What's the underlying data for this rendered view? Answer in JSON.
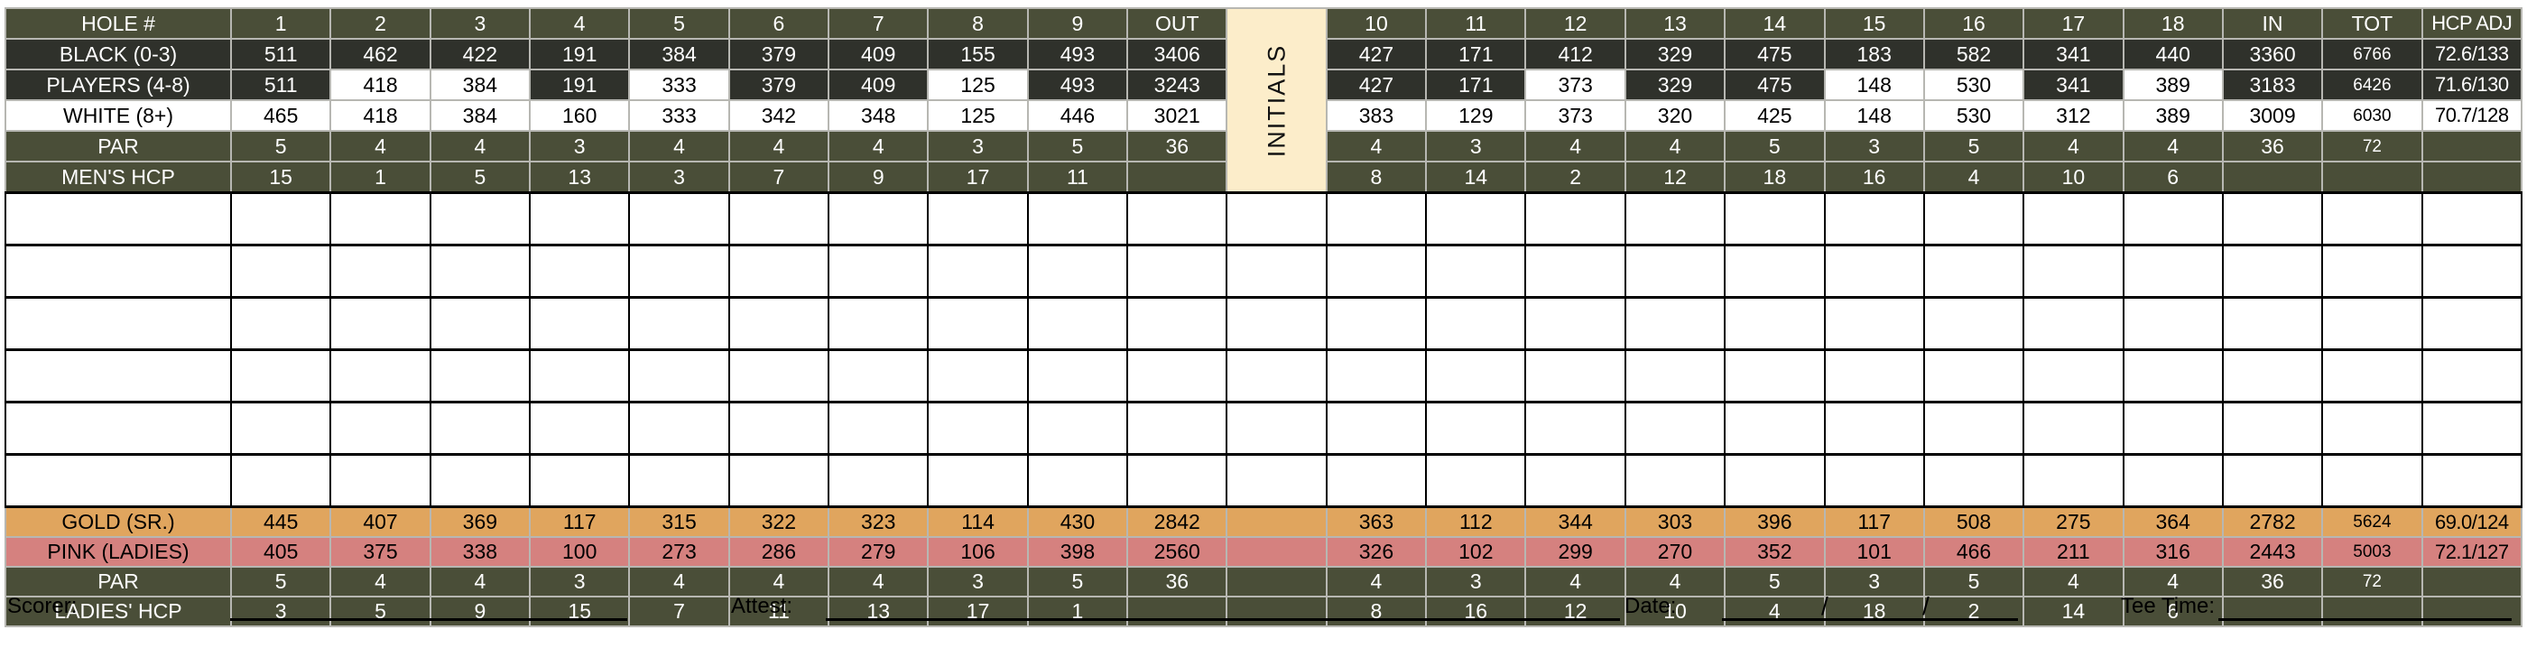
{
  "table": {
    "initials_label": "INITIALS",
    "empty_row_count": 6,
    "rows_top": [
      {
        "key": "hole",
        "label": "HOLE #",
        "row_style": "olive",
        "front": [
          "1",
          "2",
          "3",
          "4",
          "5",
          "6",
          "7",
          "8",
          "9"
        ],
        "out": "OUT",
        "back": [
          "10",
          "11",
          "12",
          "13",
          "14",
          "15",
          "16",
          "17",
          "18"
        ],
        "total_in": "IN",
        "total": "TOT",
        "hcp_adj": "HCP ADJ"
      },
      {
        "key": "black",
        "label": "BLACK (0-3)",
        "row_style": "dark",
        "front": [
          "511",
          "462",
          "422",
          "191",
          "384",
          "379",
          "409",
          "155",
          "493"
        ],
        "out": "3406",
        "back": [
          "427",
          "171",
          "412",
          "329",
          "475",
          "183",
          "582",
          "341",
          "440"
        ],
        "total_in": "3360",
        "total": "6766",
        "hcp_adj": "72.6/133"
      },
      {
        "key": "players",
        "label": "PLAYERS (4-8)",
        "row_style": "dark",
        "front": [
          "511",
          "418",
          "384",
          "191",
          "333",
          "379",
          "409",
          "125",
          "493"
        ],
        "out": "3243",
        "back": [
          "427",
          "171",
          "373",
          "329",
          "475",
          "148",
          "530",
          "341",
          "389"
        ],
        "total_in": "3183",
        "total": "6426",
        "hcp_adj": "71.6/130",
        "cell_styles": {
          "front": [
            "dark",
            "light",
            "light",
            "dark",
            "light",
            "dark",
            "dark",
            "light",
            "dark"
          ],
          "out": "dark",
          "back": [
            "dark",
            "dark",
            "light",
            "dark",
            "dark",
            "light",
            "light",
            "dark",
            "light"
          ],
          "total_in": "dark",
          "total": "dark",
          "hcp_adj": "dark"
        }
      },
      {
        "key": "white",
        "label": "WHITE (8+)",
        "row_style": "light",
        "front": [
          "465",
          "418",
          "384",
          "160",
          "333",
          "342",
          "348",
          "125",
          "446"
        ],
        "out": "3021",
        "back": [
          "383",
          "129",
          "373",
          "320",
          "425",
          "148",
          "530",
          "312",
          "389"
        ],
        "total_in": "3009",
        "total": "6030",
        "hcp_adj": "70.7/128"
      },
      {
        "key": "par",
        "label": "PAR",
        "row_style": "olive",
        "front": [
          "5",
          "4",
          "4",
          "3",
          "4",
          "4",
          "4",
          "3",
          "5"
        ],
        "out": "36",
        "back": [
          "4",
          "3",
          "4",
          "4",
          "5",
          "3",
          "5",
          "4",
          "4"
        ],
        "total_in": "36",
        "total": "72",
        "hcp_adj": ""
      },
      {
        "key": "mens-hcp",
        "label": "MEN'S HCP",
        "row_style": "olive",
        "front": [
          "15",
          "1",
          "5",
          "13",
          "3",
          "7",
          "9",
          "17",
          "11"
        ],
        "out": "",
        "back": [
          "8",
          "14",
          "2",
          "12",
          "18",
          "16",
          "4",
          "10",
          "6"
        ],
        "total_in": "",
        "total": "",
        "hcp_adj": ""
      }
    ],
    "rows_bottom": [
      {
        "key": "gold",
        "label": "GOLD (SR.)",
        "row_style": "gold",
        "front": [
          "445",
          "407",
          "369",
          "117",
          "315",
          "322",
          "323",
          "114",
          "430"
        ],
        "out": "2842",
        "back": [
          "363",
          "112",
          "344",
          "303",
          "396",
          "117",
          "508",
          "275",
          "364"
        ],
        "total_in": "2782",
        "total": "5624",
        "hcp_adj": "69.0/124"
      },
      {
        "key": "pink",
        "label": "PINK (LADIES)",
        "row_style": "pink",
        "front": [
          "405",
          "375",
          "338",
          "100",
          "273",
          "286",
          "279",
          "106",
          "398"
        ],
        "out": "2560",
        "back": [
          "326",
          "102",
          "299",
          "270",
          "352",
          "101",
          "466",
          "211",
          "316"
        ],
        "total_in": "2443",
        "total": "5003",
        "hcp_adj": "72.1/127"
      },
      {
        "key": "par2",
        "label": "PAR",
        "row_style": "olive",
        "front": [
          "5",
          "4",
          "4",
          "3",
          "4",
          "4",
          "4",
          "3",
          "5"
        ],
        "out": "36",
        "back": [
          "4",
          "3",
          "4",
          "4",
          "5",
          "3",
          "5",
          "4",
          "4"
        ],
        "total_in": "36",
        "total": "72",
        "hcp_adj": ""
      },
      {
        "key": "ladies-hcp",
        "label": "LADIES' HCP",
        "row_style": "olive",
        "front": [
          "3",
          "5",
          "9",
          "15",
          "7",
          "11",
          "13",
          "17",
          "1"
        ],
        "out": "",
        "back": [
          "8",
          "16",
          "12",
          "10",
          "4",
          "18",
          "2",
          "14",
          "6"
        ],
        "total_in": "",
        "total": "",
        "hcp_adj": ""
      }
    ]
  },
  "footer": {
    "scorer_label": "Scorer:",
    "attest_label": "Attest:",
    "date_label": "Date:",
    "slash1": "/",
    "slash2": "/",
    "tee_time_label": "Tee Time:"
  },
  "colors": {
    "olive": "#4a4e38",
    "dark_row": "#2f312b",
    "gold_row": "#e0a55e",
    "pink_row": "#d5817f",
    "initials_bg": "#fcedca",
    "gridline": "#b7b7b2"
  }
}
